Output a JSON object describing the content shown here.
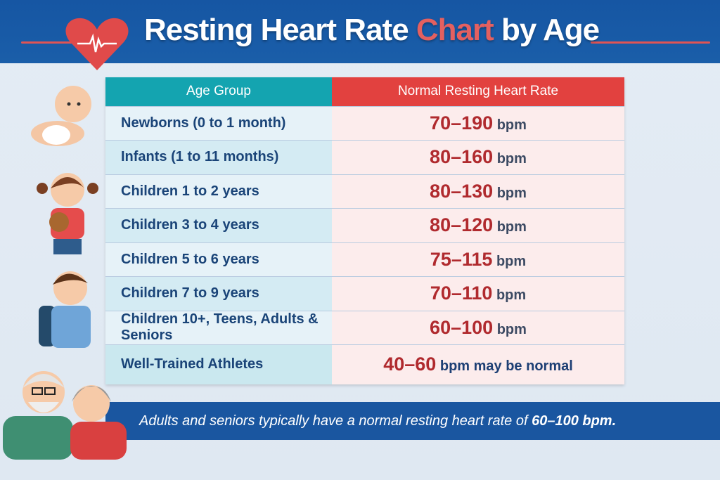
{
  "header": {
    "title_part1": "Resting Heart Rate ",
    "title_accent": "Chart",
    "title_part2": " by Age",
    "icon": "heart-pulse-icon"
  },
  "table": {
    "columns": [
      "Age Group",
      "Normal Resting Heart Rate"
    ],
    "rows": [
      {
        "group": "Newborns (0 to 1 month)",
        "range": "70–190",
        "unit": "bpm"
      },
      {
        "group": "Infants (1 to 11 months)",
        "range": "80–160",
        "unit": "bpm"
      },
      {
        "group": "Children 1 to 2 years",
        "range": "80–130",
        "unit": "bpm"
      },
      {
        "group": "Children 3 to 4 years",
        "range": "80–120",
        "unit": "bpm"
      },
      {
        "group": "Children 5 to 6 years",
        "range": "75–115",
        "unit": "bpm"
      },
      {
        "group": "Children 7 to 9 years",
        "range": "70–110",
        "unit": "bpm"
      },
      {
        "group": "Children 10+, Teens, Adults & Seniors",
        "range": "60–100",
        "unit": "bpm"
      },
      {
        "group": "Well-Trained Athletes",
        "range": "40–60",
        "unit": "bpm may be normal"
      }
    ]
  },
  "footer": {
    "text": "Adults and seniors typically have a normal resting heart rate of ",
    "highlight": "60–100 bpm."
  },
  "colors": {
    "header_bg": "#1656a3",
    "accent_red": "#e2413f",
    "teal": "#14a4b0",
    "range_red": "#b02a2e"
  }
}
